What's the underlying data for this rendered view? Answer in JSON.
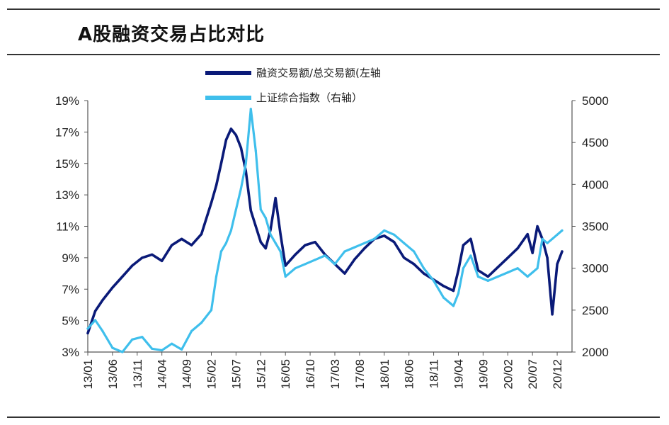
{
  "chart_data": {
    "type": "line",
    "title": "A股融资交易占比对比",
    "x_tick_labels": [
      "13/01",
      "13/06",
      "13/11",
      "14/04",
      "14/09",
      "15/02",
      "15/07",
      "15/12",
      "16/05",
      "16/10",
      "17/03",
      "17/08",
      "18/01",
      "18/06",
      "18/11",
      "19/04",
      "19/09",
      "20/02",
      "20/07",
      "20/12"
    ],
    "y_left": {
      "ticks": [
        "3%",
        "5%",
        "7%",
        "9%",
        "11%",
        "13%",
        "15%",
        "17%",
        "19%"
      ],
      "ylim": [
        3,
        19
      ],
      "unit": "%"
    },
    "y_right": {
      "ticks": [
        "2000",
        "2500",
        "3000",
        "3500",
        "4000",
        "4500",
        "5000"
      ],
      "ylim": [
        2000,
        5000
      ]
    },
    "xlim": [
      0,
      19.6
    ],
    "legend": [
      "融资交易额/总交易额(左轴",
      "上证综合指数（右轴）"
    ],
    "series": [
      {
        "name": "融资交易额/总交易额(左轴",
        "axis": "left",
        "color": "#0a1a78",
        "x": [
          0,
          0.3,
          0.6,
          1.0,
          1.4,
          1.8,
          2.2,
          2.6,
          3.0,
          3.4,
          3.8,
          4.2,
          4.6,
          5.0,
          5.2,
          5.4,
          5.6,
          5.8,
          6.0,
          6.2,
          6.4,
          6.6,
          6.8,
          7.0,
          7.2,
          7.4,
          7.6,
          7.8,
          8.0,
          8.4,
          8.8,
          9.2,
          9.6,
          10.0,
          10.4,
          10.8,
          11.2,
          11.6,
          12.0,
          12.4,
          12.8,
          13.2,
          13.6,
          14.0,
          14.4,
          14.8,
          15.0,
          15.2,
          15.5,
          15.8,
          16.2,
          16.6,
          17.0,
          17.4,
          17.8,
          18.0,
          18.2,
          18.4,
          18.6,
          18.8,
          19.0,
          19.2
        ],
        "values": [
          4.2,
          5.6,
          6.3,
          7.1,
          7.8,
          8.5,
          9.0,
          9.2,
          8.8,
          9.8,
          10.2,
          9.8,
          10.5,
          12.5,
          13.6,
          15.0,
          16.5,
          17.2,
          16.8,
          16.0,
          14.5,
          12.0,
          11.0,
          10.0,
          9.6,
          10.8,
          12.8,
          10.5,
          8.5,
          9.2,
          9.8,
          10.0,
          9.2,
          8.6,
          8.0,
          8.9,
          9.6,
          10.2,
          10.4,
          10.0,
          9.0,
          8.6,
          8.0,
          7.6,
          7.2,
          6.9,
          8.2,
          9.8,
          10.2,
          8.2,
          7.8,
          8.4,
          9.0,
          9.6,
          10.5,
          9.3,
          11.0,
          10.2,
          9.0,
          5.4,
          8.6,
          9.4
        ]
      },
      {
        "name": "上证综合指数（右轴）",
        "axis": "right",
        "color": "#3fbfec",
        "x": [
          0,
          0.3,
          0.6,
          1.0,
          1.4,
          1.8,
          2.2,
          2.6,
          3.0,
          3.4,
          3.8,
          4.2,
          4.6,
          5.0,
          5.2,
          5.4,
          5.6,
          5.8,
          6.0,
          6.2,
          6.4,
          6.6,
          6.8,
          7.0,
          7.2,
          7.4,
          7.6,
          7.8,
          8.0,
          8.4,
          8.8,
          9.2,
          9.6,
          10.0,
          10.4,
          10.8,
          11.2,
          11.6,
          12.0,
          12.4,
          12.8,
          13.2,
          13.6,
          14.0,
          14.4,
          14.8,
          15.0,
          15.2,
          15.5,
          15.8,
          16.2,
          16.6,
          17.0,
          17.4,
          17.8,
          18.0,
          18.2,
          18.4,
          18.6,
          18.8,
          19.0,
          19.2
        ],
        "values": [
          2280,
          2380,
          2250,
          2050,
          2000,
          2150,
          2180,
          2040,
          2020,
          2100,
          2030,
          2250,
          2350,
          2500,
          2900,
          3200,
          3300,
          3450,
          3700,
          3950,
          4250,
          4900,
          4400,
          3700,
          3600,
          3400,
          3300,
          3200,
          2900,
          3000,
          3050,
          3100,
          3150,
          3050,
          3200,
          3250,
          3300,
          3350,
          3450,
          3400,
          3300,
          3200,
          3000,
          2850,
          2650,
          2550,
          2700,
          3000,
          3150,
          2900,
          2850,
          2900,
          2950,
          3000,
          2900,
          2950,
          3000,
          3350,
          3300,
          3350,
          3400,
          3450
        ]
      }
    ]
  }
}
